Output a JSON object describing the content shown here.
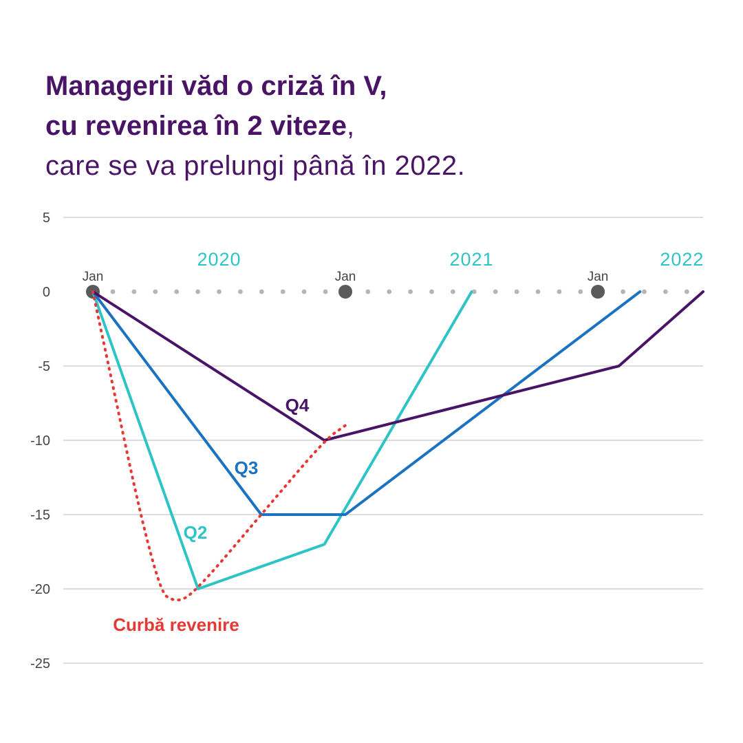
{
  "title": {
    "line1": "Managerii văd o criză în V,",
    "line2_bold": "cu revenirea în 2 viteze",
    "line2_rest": ",",
    "line3": "care se va prelungi până în 2022."
  },
  "chart_data": {
    "type": "line",
    "ylim": [
      -25,
      5
    ],
    "y_ticks": [
      5,
      0,
      -5,
      -10,
      -15,
      -20,
      -25
    ],
    "x_axis": {
      "start": "2020-01",
      "end": "2022-06",
      "month_markers": [
        {
          "label": "Jan",
          "x": "2020-01"
        },
        {
          "label": "Jan",
          "x": "2021-01"
        },
        {
          "label": "Jan",
          "x": "2022-01"
        }
      ],
      "year_labels": [
        {
          "label": "2020",
          "x": "2020-07"
        },
        {
          "label": "2021",
          "x": "2021-07"
        },
        {
          "label": "2022",
          "x": "2022-05"
        }
      ]
    },
    "grid": true,
    "colors": {
      "Q2": "#2ec4c6",
      "Q3": "#1a72c0",
      "Q4": "#4a1466",
      "Curbă revenire": "#e53935",
      "markers": "#5a5a5a",
      "grid": "#b9b9b9",
      "year_labels": "#2ec4c6"
    },
    "series": [
      {
        "name": "Q4",
        "points": [
          [
            "2020-01",
            0
          ],
          [
            "2020-12",
            -10
          ],
          [
            "2022-02",
            -5
          ],
          [
            "2022-06",
            0
          ]
        ]
      },
      {
        "name": "Q3",
        "points": [
          [
            "2020-01",
            0
          ],
          [
            "2020-09",
            -15
          ],
          [
            "2021-01",
            -15
          ],
          [
            "2022-03",
            0
          ]
        ]
      },
      {
        "name": "Q2",
        "points": [
          [
            "2020-01",
            0
          ],
          [
            "2020-06",
            -20
          ],
          [
            "2020-12",
            -17
          ],
          [
            "2021-07",
            0
          ]
        ]
      },
      {
        "name": "Curbă revenire",
        "style": "dotted",
        "points": [
          [
            "2020-01",
            0
          ],
          [
            "2020-04",
            -20
          ],
          [
            "2020-05",
            -21
          ],
          [
            "2020-06",
            -20
          ],
          [
            "2020-09",
            -15
          ],
          [
            "2020-12",
            -10
          ],
          [
            "2021-01",
            -9
          ]
        ]
      }
    ]
  }
}
